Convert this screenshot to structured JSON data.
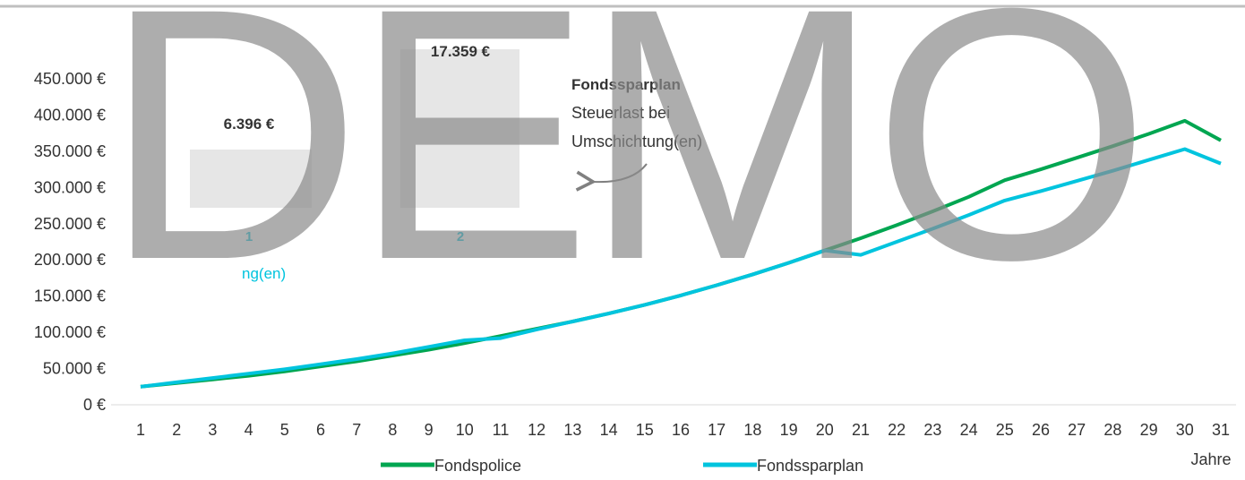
{
  "chart_data": {
    "type": "line",
    "x": [
      1,
      2,
      3,
      4,
      5,
      6,
      7,
      8,
      9,
      10,
      11,
      12,
      13,
      14,
      15,
      16,
      17,
      18,
      19,
      20,
      21,
      22,
      23,
      24,
      25,
      26,
      27,
      28,
      29,
      30,
      31
    ],
    "xlabel": "Jahre",
    "ylim": [
      0,
      450000
    ],
    "yticks": [
      0,
      50000,
      100000,
      150000,
      200000,
      250000,
      300000,
      350000,
      400000,
      450000
    ],
    "ytick_labels": [
      "0 €",
      "50.000 €",
      "100.000 €",
      "150.000 €",
      "200.000 €",
      "250.000 €",
      "300.000 €",
      "350.000 €",
      "400.000 €",
      "450.000 €"
    ],
    "grid": false,
    "legend_position": "bottom",
    "series": [
      {
        "name": "Fondspolice",
        "color": "#00a651",
        "values": [
          25000,
          30000,
          35000,
          40000,
          46000,
          53000,
          60000,
          68000,
          76000,
          85000,
          95000,
          105000,
          115000,
          126000,
          138000,
          151000,
          165000,
          180000,
          196000,
          213000,
          230000,
          248000,
          267000,
          287000,
          310000,
          325000,
          341000,
          357000,
          374000,
          392000,
          365000
        ]
      },
      {
        "name": "Fondssparplan",
        "color": "#00c4de",
        "values": [
          25000,
          31000,
          37000,
          43000,
          49000,
          56000,
          63000,
          71000,
          80000,
          89000,
          92000,
          104000,
          115000,
          126000,
          138000,
          151000,
          165000,
          180000,
          196000,
          213000,
          207000,
          225000,
          243000,
          262000,
          282000,
          295000,
          309000,
          323000,
          338000,
          353000,
          333000
        ]
      }
    ],
    "annotations": {
      "bar_values": [
        "6.396 €",
        "17.359 €"
      ],
      "bar_numbers": [
        "1",
        "2"
      ],
      "callout_title": "Fondssparplan",
      "callout_line1": "Steuerlast bei",
      "callout_line2": "Umschichtung(en)",
      "left_fragment": "ng(en)"
    }
  },
  "watermark": "DEMO"
}
